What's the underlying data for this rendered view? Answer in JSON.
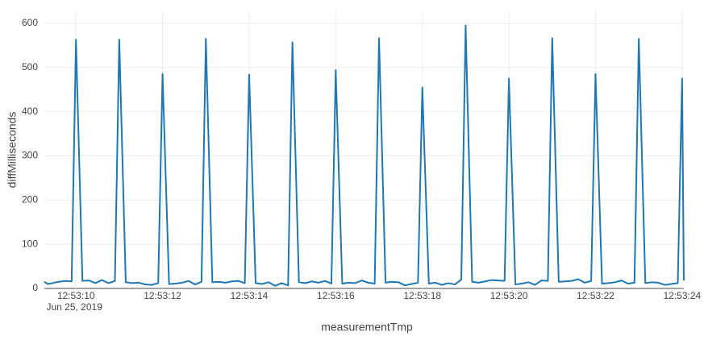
{
  "chart_data": {
    "type": "line",
    "x_label": "measurementTmp",
    "y_label": "diffMilliseconds",
    "date_label": "Jun 25, 2019",
    "x": [
      "2019-06-25T12:53:09.27",
      "2019-06-25T12:53:09.35",
      "2019-06-25T12:53:09.45",
      "2019-06-25T12:53:09.60",
      "2019-06-25T12:53:09.75",
      "2019-06-25T12:53:09.90",
      "2019-06-25T12:53:10.00",
      "2019-06-25T12:53:10.15",
      "2019-06-25T12:53:10.30",
      "2019-06-25T12:53:10.45",
      "2019-06-25T12:53:10.60",
      "2019-06-25T12:53:10.75",
      "2019-06-25T12:53:10.90",
      "2019-06-25T12:53:11.00",
      "2019-06-25T12:53:11.15",
      "2019-06-25T12:53:11.30",
      "2019-06-25T12:53:11.45",
      "2019-06-25T12:53:11.60",
      "2019-06-25T12:53:11.75",
      "2019-06-25T12:53:11.90",
      "2019-06-25T12:53:12.00",
      "2019-06-25T12:53:12.15",
      "2019-06-25T12:53:12.30",
      "2019-06-25T12:53:12.45",
      "2019-06-25T12:53:12.60",
      "2019-06-25T12:53:12.75",
      "2019-06-25T12:53:12.90",
      "2019-06-25T12:53:13.00",
      "2019-06-25T12:53:13.15",
      "2019-06-25T12:53:13.30",
      "2019-06-25T12:53:13.45",
      "2019-06-25T12:53:13.60",
      "2019-06-25T12:53:13.75",
      "2019-06-25T12:53:13.90",
      "2019-06-25T12:53:14.00",
      "2019-06-25T12:53:14.15",
      "2019-06-25T12:53:14.30",
      "2019-06-25T12:53:14.45",
      "2019-06-25T12:53:14.60",
      "2019-06-25T12:53:14.75",
      "2019-06-25T12:53:14.90",
      "2019-06-25T12:53:15.00",
      "2019-06-25T12:53:15.15",
      "2019-06-25T12:53:15.30",
      "2019-06-25T12:53:15.45",
      "2019-06-25T12:53:15.60",
      "2019-06-25T12:53:15.75",
      "2019-06-25T12:53:15.90",
      "2019-06-25T12:53:16.00",
      "2019-06-25T12:53:16.15",
      "2019-06-25T12:53:16.30",
      "2019-06-25T12:53:16.45",
      "2019-06-25T12:53:16.60",
      "2019-06-25T12:53:16.75",
      "2019-06-25T12:53:16.90",
      "2019-06-25T12:53:17.00",
      "2019-06-25T12:53:17.15",
      "2019-06-25T12:53:17.30",
      "2019-06-25T12:53:17.45",
      "2019-06-25T12:53:17.60",
      "2019-06-25T12:53:17.75",
      "2019-06-25T12:53:17.90",
      "2019-06-25T12:53:18.00",
      "2019-06-25T12:53:18.15",
      "2019-06-25T12:53:18.30",
      "2019-06-25T12:53:18.45",
      "2019-06-25T12:53:18.60",
      "2019-06-25T12:53:18.75",
      "2019-06-25T12:53:18.90",
      "2019-06-25T12:53:19.00",
      "2019-06-25T12:53:19.15",
      "2019-06-25T12:53:19.30",
      "2019-06-25T12:53:19.45",
      "2019-06-25T12:53:19.60",
      "2019-06-25T12:53:19.75",
      "2019-06-25T12:53:19.90",
      "2019-06-25T12:53:20.00",
      "2019-06-25T12:53:20.15",
      "2019-06-25T12:53:20.30",
      "2019-06-25T12:53:20.45",
      "2019-06-25T12:53:20.60",
      "2019-06-25T12:53:20.75",
      "2019-06-25T12:53:20.90",
      "2019-06-25T12:53:21.00",
      "2019-06-25T12:53:21.15",
      "2019-06-25T12:53:21.30",
      "2019-06-25T12:53:21.45",
      "2019-06-25T12:53:21.60",
      "2019-06-25T12:53:21.75",
      "2019-06-25T12:53:21.90",
      "2019-06-25T12:53:22.00",
      "2019-06-25T12:53:22.15",
      "2019-06-25T12:53:22.30",
      "2019-06-25T12:53:22.45",
      "2019-06-25T12:53:22.60",
      "2019-06-25T12:53:22.75",
      "2019-06-25T12:53:22.90",
      "2019-06-25T12:53:23.00",
      "2019-06-25T12:53:23.15",
      "2019-06-25T12:53:23.30",
      "2019-06-25T12:53:23.45",
      "2019-06-25T12:53:23.60",
      "2019-06-25T12:53:23.75",
      "2019-06-25T12:53:23.90",
      "2019-06-25T12:53:24.00",
      "2019-06-25T12:53:24.04"
    ],
    "series": [
      {
        "name": "diffMilliseconds",
        "color": "#1f77b4",
        "values": [
          15,
          10,
          12,
          15,
          17,
          16,
          563,
          17,
          18,
          12,
          19,
          12,
          17,
          563,
          14,
          12,
          13,
          9,
          8,
          12,
          485,
          10,
          11,
          13,
          17,
          9,
          15,
          565,
          14,
          15,
          13,
          16,
          17,
          12,
          484,
          12,
          10,
          14,
          6,
          12,
          7,
          557,
          14,
          12,
          16,
          13,
          17,
          11,
          494,
          11,
          13,
          12,
          18,
          13,
          11,
          566,
          13,
          15,
          14,
          7,
          10,
          13,
          455,
          11,
          13,
          8,
          12,
          9,
          20,
          595,
          15,
          13,
          16,
          19,
          18,
          17,
          475,
          9,
          11,
          14,
          8,
          18,
          17,
          566,
          15,
          16,
          17,
          21,
          13,
          17,
          485,
          11,
          12,
          14,
          18,
          11,
          13,
          565,
          12,
          14,
          13,
          8,
          10,
          12,
          475,
          18
        ]
      }
    ],
    "xlim": [
      "2019-06-25T12:53:09.27",
      "2019-06-25T12:53:24.04"
    ],
    "xticks": [
      {
        "value": "2019-06-25T12:53:10",
        "label": "12:53:10"
      },
      {
        "value": "2019-06-25T12:53:12",
        "label": "12:53:12"
      },
      {
        "value": "2019-06-25T12:53:14",
        "label": "12:53:14"
      },
      {
        "value": "2019-06-25T12:53:16",
        "label": "12:53:16"
      },
      {
        "value": "2019-06-25T12:53:18",
        "label": "12:53:18"
      },
      {
        "value": "2019-06-25T12:53:20",
        "label": "12:53:20"
      },
      {
        "value": "2019-06-25T12:53:22",
        "label": "12:53:22"
      },
      {
        "value": "2019-06-25T12:53:24",
        "label": "12:53:24"
      }
    ],
    "ylim": [
      0,
      629
    ],
    "yticks": [
      0,
      100,
      200,
      300,
      400,
      500,
      600
    ],
    "grid": true
  }
}
